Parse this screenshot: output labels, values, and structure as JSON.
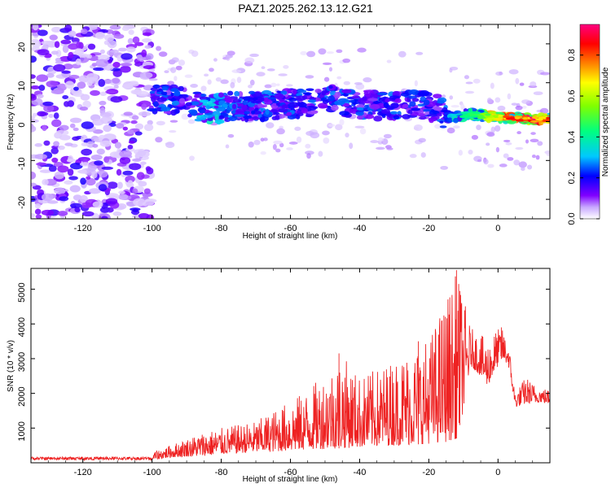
{
  "chart_data": [
    {
      "type": "heatmap",
      "title": "PAZ1.2025.262.13.12.G21",
      "xlabel": "Height of straight line (km)",
      "ylabel": "Frequency (Hz)",
      "xlim": [
        -135,
        15
      ],
      "ylim": [
        -25,
        25
      ],
      "xticks": [
        -120,
        -100,
        -80,
        -60,
        -40,
        -20,
        0
      ],
      "yticks": [
        -20,
        -10,
        0,
        10,
        20
      ],
      "colorbar": {
        "label": "Normalized spectral amplitude",
        "ticks": [
          0.0,
          0.2,
          0.4,
          0.6,
          0.8
        ],
        "tick_labels": [
          "0.0",
          "0.2",
          "0.4",
          "0.6",
          "0.8"
        ],
        "range": [
          0,
          0.95
        ],
        "colors": [
          "#ffffff",
          "#c8a8ff",
          "#8000ff",
          "#0000ff",
          "#00c8ff",
          "#00ff80",
          "#80ff00",
          "#ffff00",
          "#ff8000",
          "#ff0000",
          "#ff0080"
        ]
      },
      "signal_track": [
        {
          "x": -98,
          "f": 6.0,
          "amp": 0.25
        },
        {
          "x": -90,
          "f": 5.0,
          "amp": 0.25
        },
        {
          "x": -84,
          "f": 3.0,
          "amp": 0.35
        },
        {
          "x": -76,
          "f": 4.0,
          "amp": 0.25
        },
        {
          "x": -68,
          "f": 4.0,
          "amp": 0.25
        },
        {
          "x": -60,
          "f": 4.5,
          "amp": 0.25
        },
        {
          "x": -54,
          "f": 5.0,
          "amp": 0.25
        },
        {
          "x": -48,
          "f": 5.5,
          "amp": 0.25
        },
        {
          "x": -40,
          "f": 4.5,
          "amp": 0.25
        },
        {
          "x": -32,
          "f": 4.0,
          "amp": 0.25
        },
        {
          "x": -24,
          "f": 4.5,
          "amp": 0.25
        },
        {
          "x": -18,
          "f": 3.5,
          "amp": 0.2
        },
        {
          "x": -14,
          "f": 1.0,
          "amp": 0.3
        },
        {
          "x": -8,
          "f": 2.0,
          "amp": 0.5
        },
        {
          "x": -4,
          "f": 1.5,
          "amp": 0.6
        },
        {
          "x": 0,
          "f": 1.0,
          "amp": 0.75
        },
        {
          "x": 5,
          "f": 1.0,
          "amp": 0.85
        },
        {
          "x": 10,
          "f": 0.5,
          "amp": 0.9
        },
        {
          "x": 15,
          "f": 0.5,
          "amp": 0.8
        }
      ]
    },
    {
      "type": "line",
      "xlabel": "Height of straight line (km)",
      "ylabel": "SNR (10 * v/v)",
      "xlim": [
        -135,
        15
      ],
      "ylim": [
        0,
        5600
      ],
      "xticks": [
        -120,
        -100,
        -80,
        -60,
        -40,
        -20,
        0
      ],
      "yticks": [
        1000,
        2000,
        3000,
        4000,
        5000
      ],
      "color": "#ee2222",
      "envelope": {
        "x": [
          -135,
          -120,
          -105,
          -100,
          -95,
          -90,
          -85,
          -80,
          -75,
          -70,
          -65,
          -60,
          -55,
          -50,
          -45,
          -40,
          -35,
          -30,
          -25,
          -20,
          -15,
          -12,
          -10,
          -8,
          -5,
          -3,
          -1,
          1,
          3,
          5,
          8,
          10,
          12,
          15
        ],
        "base": [
          50,
          50,
          50,
          80,
          150,
          180,
          200,
          250,
          280,
          300,
          320,
          350,
          380,
          400,
          420,
          450,
          480,
          500,
          520,
          550,
          600,
          700,
          1500,
          2800,
          2500,
          2200,
          2600,
          3000,
          2800,
          1600,
          1700,
          1700,
          1750,
          1700
        ],
        "peak": [
          220,
          200,
          180,
          300,
          500,
          700,
          900,
          1000,
          1100,
          1200,
          1500,
          1800,
          2100,
          2600,
          3100,
          2500,
          2700,
          3000,
          3300,
          3600,
          4800,
          5500,
          4800,
          3900,
          3700,
          3500,
          3800,
          3900,
          3500,
          2000,
          2500,
          2300,
          2200,
          2100
        ]
      },
      "notable_peaks": [
        {
          "x": -46,
          "y": 3150
        },
        {
          "x": -23,
          "y": 3500
        },
        {
          "x": -12,
          "y": 5550
        },
        {
          "x": -11,
          "y": 4950
        },
        {
          "x": 1,
          "y": 3900
        }
      ]
    }
  ]
}
